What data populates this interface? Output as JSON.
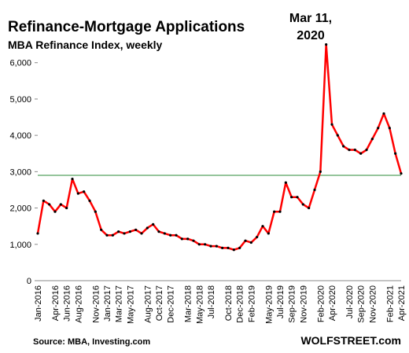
{
  "chart_data": {
    "type": "line",
    "title": "Refinance-Mortgage  Applications",
    "subtitle": "MBA Refinance Index, weekly",
    "annotation": [
      "Mar 11,",
      "2020"
    ],
    "source": "Source: MBA, Investing.com",
    "brand": "WOLFSTREET.com",
    "categories": [
      "Jan-2016",
      null,
      null,
      "Apr-2016",
      null,
      "Jun-2016",
      null,
      "Aug-2016",
      null,
      null,
      "Nov-2016",
      null,
      "Jan-2017",
      null,
      "Mar-2017",
      null,
      "May-2017",
      null,
      null,
      "Aug-2017",
      null,
      "Oct-2017",
      null,
      "Dec-2017",
      null,
      null,
      "Mar-2018",
      null,
      "May-2018",
      null,
      "Jul-2018",
      null,
      null,
      "Oct-2018",
      null,
      "Dec-2018",
      null,
      "Feb-2019",
      null,
      null,
      "May-2019",
      null,
      "Jul-2019",
      null,
      "Sep-2019",
      null,
      "Nov-2019",
      null,
      null,
      "Feb-2020",
      null,
      "Apr-2020",
      null,
      null,
      "Jul-2020",
      null,
      "Sep-2020",
      null,
      "Nov-2020",
      null,
      null,
      "Feb-2021",
      null,
      "Apr-2021"
    ],
    "series": [
      {
        "name": "MBA Refinance Index",
        "color": "#ff0000",
        "marker_color": "#000000",
        "values": [
          1300,
          2200,
          2100,
          1900,
          2100,
          2000,
          2800,
          2400,
          2450,
          2200,
          1900,
          1400,
          1250,
          1250,
          1350,
          1300,
          1350,
          1400,
          1300,
          1450,
          1550,
          1350,
          1300,
          1250,
          1250,
          1150,
          1150,
          1100,
          1000,
          1000,
          950,
          950,
          900,
          900,
          850,
          900,
          1100,
          1050,
          1200,
          1500,
          1300,
          1900,
          1900,
          2700,
          2300,
          2300,
          2100,
          2000,
          2500,
          3000,
          6500,
          4300,
          4000,
          3700,
          3600,
          3600,
          3500,
          3600,
          3900,
          4200,
          4600,
          4200,
          3500,
          2950
        ]
      }
    ],
    "reference_line": {
      "value": 2900,
      "color": "#2e8b3a"
    },
    "ylim": [
      0,
      6600
    ],
    "yticks": [
      0,
      {
        "value": 1000,
        "label": "1,000"
      },
      {
        "value": 2000,
        "label": "2,000"
      },
      {
        "value": 3000,
        "label": "3,000"
      },
      {
        "value": 4000,
        "label": "4,000"
      },
      {
        "value": 5000,
        "label": "5,000"
      },
      {
        "value": 6000,
        "label": "6,000"
      }
    ],
    "grid": false
  }
}
